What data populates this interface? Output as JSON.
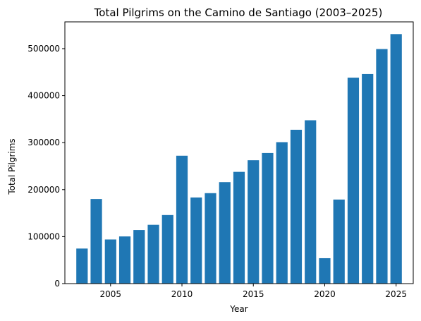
{
  "chart_data": {
    "type": "bar",
    "title": "Total Pilgrims on the Camino de Santiago (2003–2025)",
    "xlabel": "Year",
    "ylabel": "Total Pilgrims",
    "x": [
      2003,
      2004,
      2005,
      2006,
      2007,
      2008,
      2009,
      2010,
      2011,
      2012,
      2013,
      2014,
      2015,
      2016,
      2017,
      2018,
      2019,
      2020,
      2021,
      2022,
      2023,
      2024,
      2025
    ],
    "values": [
      74600,
      180000,
      93900,
      100400,
      114000,
      125100,
      145900,
      272100,
      183300,
      192500,
      215900,
      237800,
      262500,
      277900,
      301000,
      327400,
      347600,
      54100,
      178900,
      438300,
      446000,
      499200,
      531000
    ],
    "xlim": [
      2001.8,
      2026.2
    ],
    "ylim": [
      0,
      557000
    ],
    "xticks": [
      2005,
      2010,
      2015,
      2020,
      2025
    ],
    "yticks": [
      0,
      100000,
      200000,
      300000,
      400000,
      500000
    ],
    "bar_color": "#1f77b4",
    "grid": false,
    "legend": "none"
  }
}
